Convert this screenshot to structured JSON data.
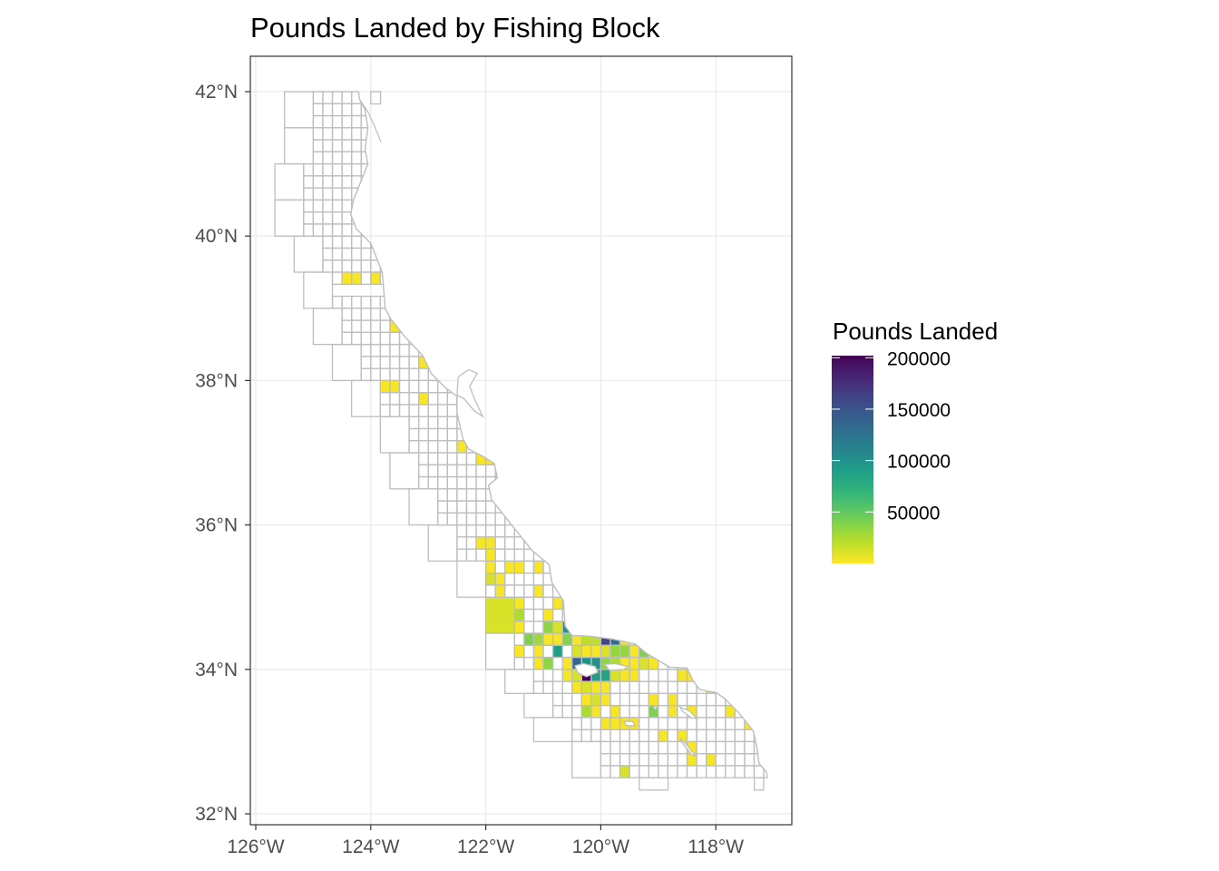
{
  "chart_data": {
    "type": "heatmap",
    "subtype": "choropleth-map",
    "title": "Pounds Landed by Fishing Block",
    "xlabel": "",
    "ylabel": "",
    "x_ticks": [
      "126°W",
      "124°W",
      "122°W",
      "120°W",
      "118°W"
    ],
    "x_tick_values": [
      -126,
      -124,
      -122,
      -120,
      -118
    ],
    "y_ticks": [
      "42°N",
      "40°N",
      "38°N",
      "36°N",
      "34°N",
      "32°N"
    ],
    "y_tick_values": [
      42,
      40,
      38,
      36,
      34,
      32
    ],
    "xlim": [
      -126.1,
      -116.7
    ],
    "ylim": [
      31.9,
      42.5
    ],
    "grid": true,
    "legend": {
      "title": "Pounds Landed",
      "position": "right",
      "ticks": [
        "200000",
        "150000",
        "100000",
        "50000"
      ],
      "tick_values": [
        200000,
        150000,
        100000,
        50000
      ],
      "range": [
        0,
        202000
      ],
      "palette": "viridis-reversed"
    },
    "colors": {
      "block_outline": "#bebebe",
      "coastline": "#bebebe",
      "panel_border": "#333333",
      "gridline": "#ebebeb"
    },
    "block_fields": [
      "lon_west",
      "lat_north",
      "pounds"
    ],
    "block_size_deg": 0.1667,
    "blocks": [
      [
        -124.5,
        39.5,
        2000
      ],
      [
        -124.33,
        39.5,
        2000
      ],
      [
        -124.0,
        39.5,
        2000
      ],
      [
        -123.67,
        38.83,
        2000
      ],
      [
        -123.17,
        38.33,
        2000
      ],
      [
        -123.83,
        38.0,
        2000
      ],
      [
        -123.67,
        38.0,
        2000
      ],
      [
        -123.17,
        37.83,
        2000
      ],
      [
        -122.5,
        37.17,
        2000
      ],
      [
        -122.17,
        37.0,
        2000
      ],
      [
        -122.0,
        37.0,
        2000
      ],
      [
        -122.17,
        35.83,
        2000
      ],
      [
        -122.0,
        35.83,
        2000
      ],
      [
        -122.0,
        35.67,
        2000
      ],
      [
        -122.0,
        35.5,
        2000
      ],
      [
        -121.67,
        35.5,
        2000
      ],
      [
        -121.5,
        35.5,
        2000
      ],
      [
        -121.17,
        35.5,
        2000
      ],
      [
        -122.0,
        35.33,
        12000
      ],
      [
        -121.83,
        35.33,
        2000
      ],
      [
        -121.83,
        35.17,
        2000
      ],
      [
        -121.17,
        35.17,
        2000
      ],
      [
        -121.5,
        35.0,
        2000
      ],
      [
        -120.83,
        35.0,
        2000
      ],
      [
        -121.5,
        34.83,
        25000
      ],
      [
        -121.0,
        34.83,
        2000
      ],
      [
        -121.5,
        34.67,
        2000
      ],
      [
        -121.0,
        34.67,
        35000
      ],
      [
        -120.83,
        34.67,
        12000
      ],
      [
        -120.67,
        34.67,
        100000
      ],
      [
        -121.33,
        34.5,
        40000
      ],
      [
        -121.17,
        34.5,
        30000
      ],
      [
        -121.0,
        34.5,
        2000
      ],
      [
        -120.83,
        34.5,
        2000
      ],
      [
        -120.67,
        34.5,
        38000
      ],
      [
        -120.5,
        34.5,
        2000
      ],
      [
        -120.33,
        34.5,
        20000
      ],
      [
        -120.17,
        34.5,
        20000
      ],
      [
        -120.0,
        34.5,
        160000
      ],
      [
        -119.83,
        34.5,
        130000
      ],
      [
        -119.67,
        34.5,
        2000
      ],
      [
        -121.5,
        34.33,
        2000
      ],
      [
        -121.17,
        34.33,
        2000
      ],
      [
        -120.83,
        34.33,
        90000
      ],
      [
        -120.5,
        34.33,
        12000
      ],
      [
        -120.33,
        34.33,
        2000
      ],
      [
        -120.17,
        34.33,
        2000
      ],
      [
        -120.0,
        34.33,
        12000
      ],
      [
        -119.83,
        34.33,
        33000
      ],
      [
        -119.67,
        34.33,
        33000
      ],
      [
        -119.5,
        34.33,
        2000
      ],
      [
        -119.33,
        34.33,
        40000
      ],
      [
        -121.17,
        34.17,
        2000
      ],
      [
        -121.0,
        34.17,
        35000
      ],
      [
        -120.67,
        34.17,
        2000
      ],
      [
        -120.5,
        34.17,
        135000
      ],
      [
        -120.33,
        34.17,
        100000
      ],
      [
        -120.17,
        34.17,
        100000
      ],
      [
        -120.0,
        34.17,
        35000
      ],
      [
        -119.83,
        34.17,
        25000
      ],
      [
        -119.67,
        34.17,
        2000
      ],
      [
        -119.5,
        34.17,
        2000
      ],
      [
        -119.33,
        34.17,
        12000
      ],
      [
        -119.17,
        34.17,
        2000
      ],
      [
        -120.67,
        34.0,
        2000
      ],
      [
        -120.5,
        34.0,
        12000
      ],
      [
        -120.33,
        34.0,
        202000
      ],
      [
        -120.17,
        34.0,
        90000
      ],
      [
        -120.0,
        34.0,
        85000
      ],
      [
        -119.83,
        34.0,
        12000
      ],
      [
        -119.67,
        34.0,
        2000
      ],
      [
        -119.5,
        34.0,
        2000
      ],
      [
        -118.67,
        34.0,
        2000
      ],
      [
        -118.5,
        34.0,
        2000
      ],
      [
        -120.5,
        33.83,
        2000
      ],
      [
        -120.33,
        33.83,
        12000
      ],
      [
        -120.17,
        33.83,
        2000
      ],
      [
        -120.0,
        33.83,
        2000
      ],
      [
        -118.17,
        33.83,
        2000
      ],
      [
        -120.33,
        33.67,
        2000
      ],
      [
        -120.17,
        33.67,
        12000
      ],
      [
        -120.0,
        33.67,
        2000
      ],
      [
        -119.17,
        33.67,
        2000
      ],
      [
        -118.83,
        33.67,
        2000
      ],
      [
        -120.33,
        33.5,
        25000
      ],
      [
        -120.17,
        33.5,
        2000
      ],
      [
        -119.83,
        33.5,
        2000
      ],
      [
        -119.17,
        33.5,
        40000
      ],
      [
        -118.83,
        33.5,
        2000
      ],
      [
        -118.5,
        33.5,
        2000
      ],
      [
        -117.83,
        33.5,
        2000
      ],
      [
        -120.0,
        33.33,
        2000
      ],
      [
        -119.83,
        33.33,
        2000
      ],
      [
        -119.67,
        33.33,
        2000
      ],
      [
        -119.5,
        33.33,
        2000
      ],
      [
        -117.5,
        33.33,
        2000
      ],
      [
        -119.0,
        33.17,
        2000
      ],
      [
        -118.67,
        33.17,
        2000
      ],
      [
        -118.5,
        33.0,
        2000
      ],
      [
        -118.5,
        32.83,
        2000
      ],
      [
        -118.17,
        32.83,
        2000
      ],
      [
        -119.67,
        32.67,
        12000
      ]
    ],
    "large_block_size_deg": 0.5,
    "large_blocks": [
      [
        -122.0,
        35.0,
        12000
      ]
    ]
  }
}
